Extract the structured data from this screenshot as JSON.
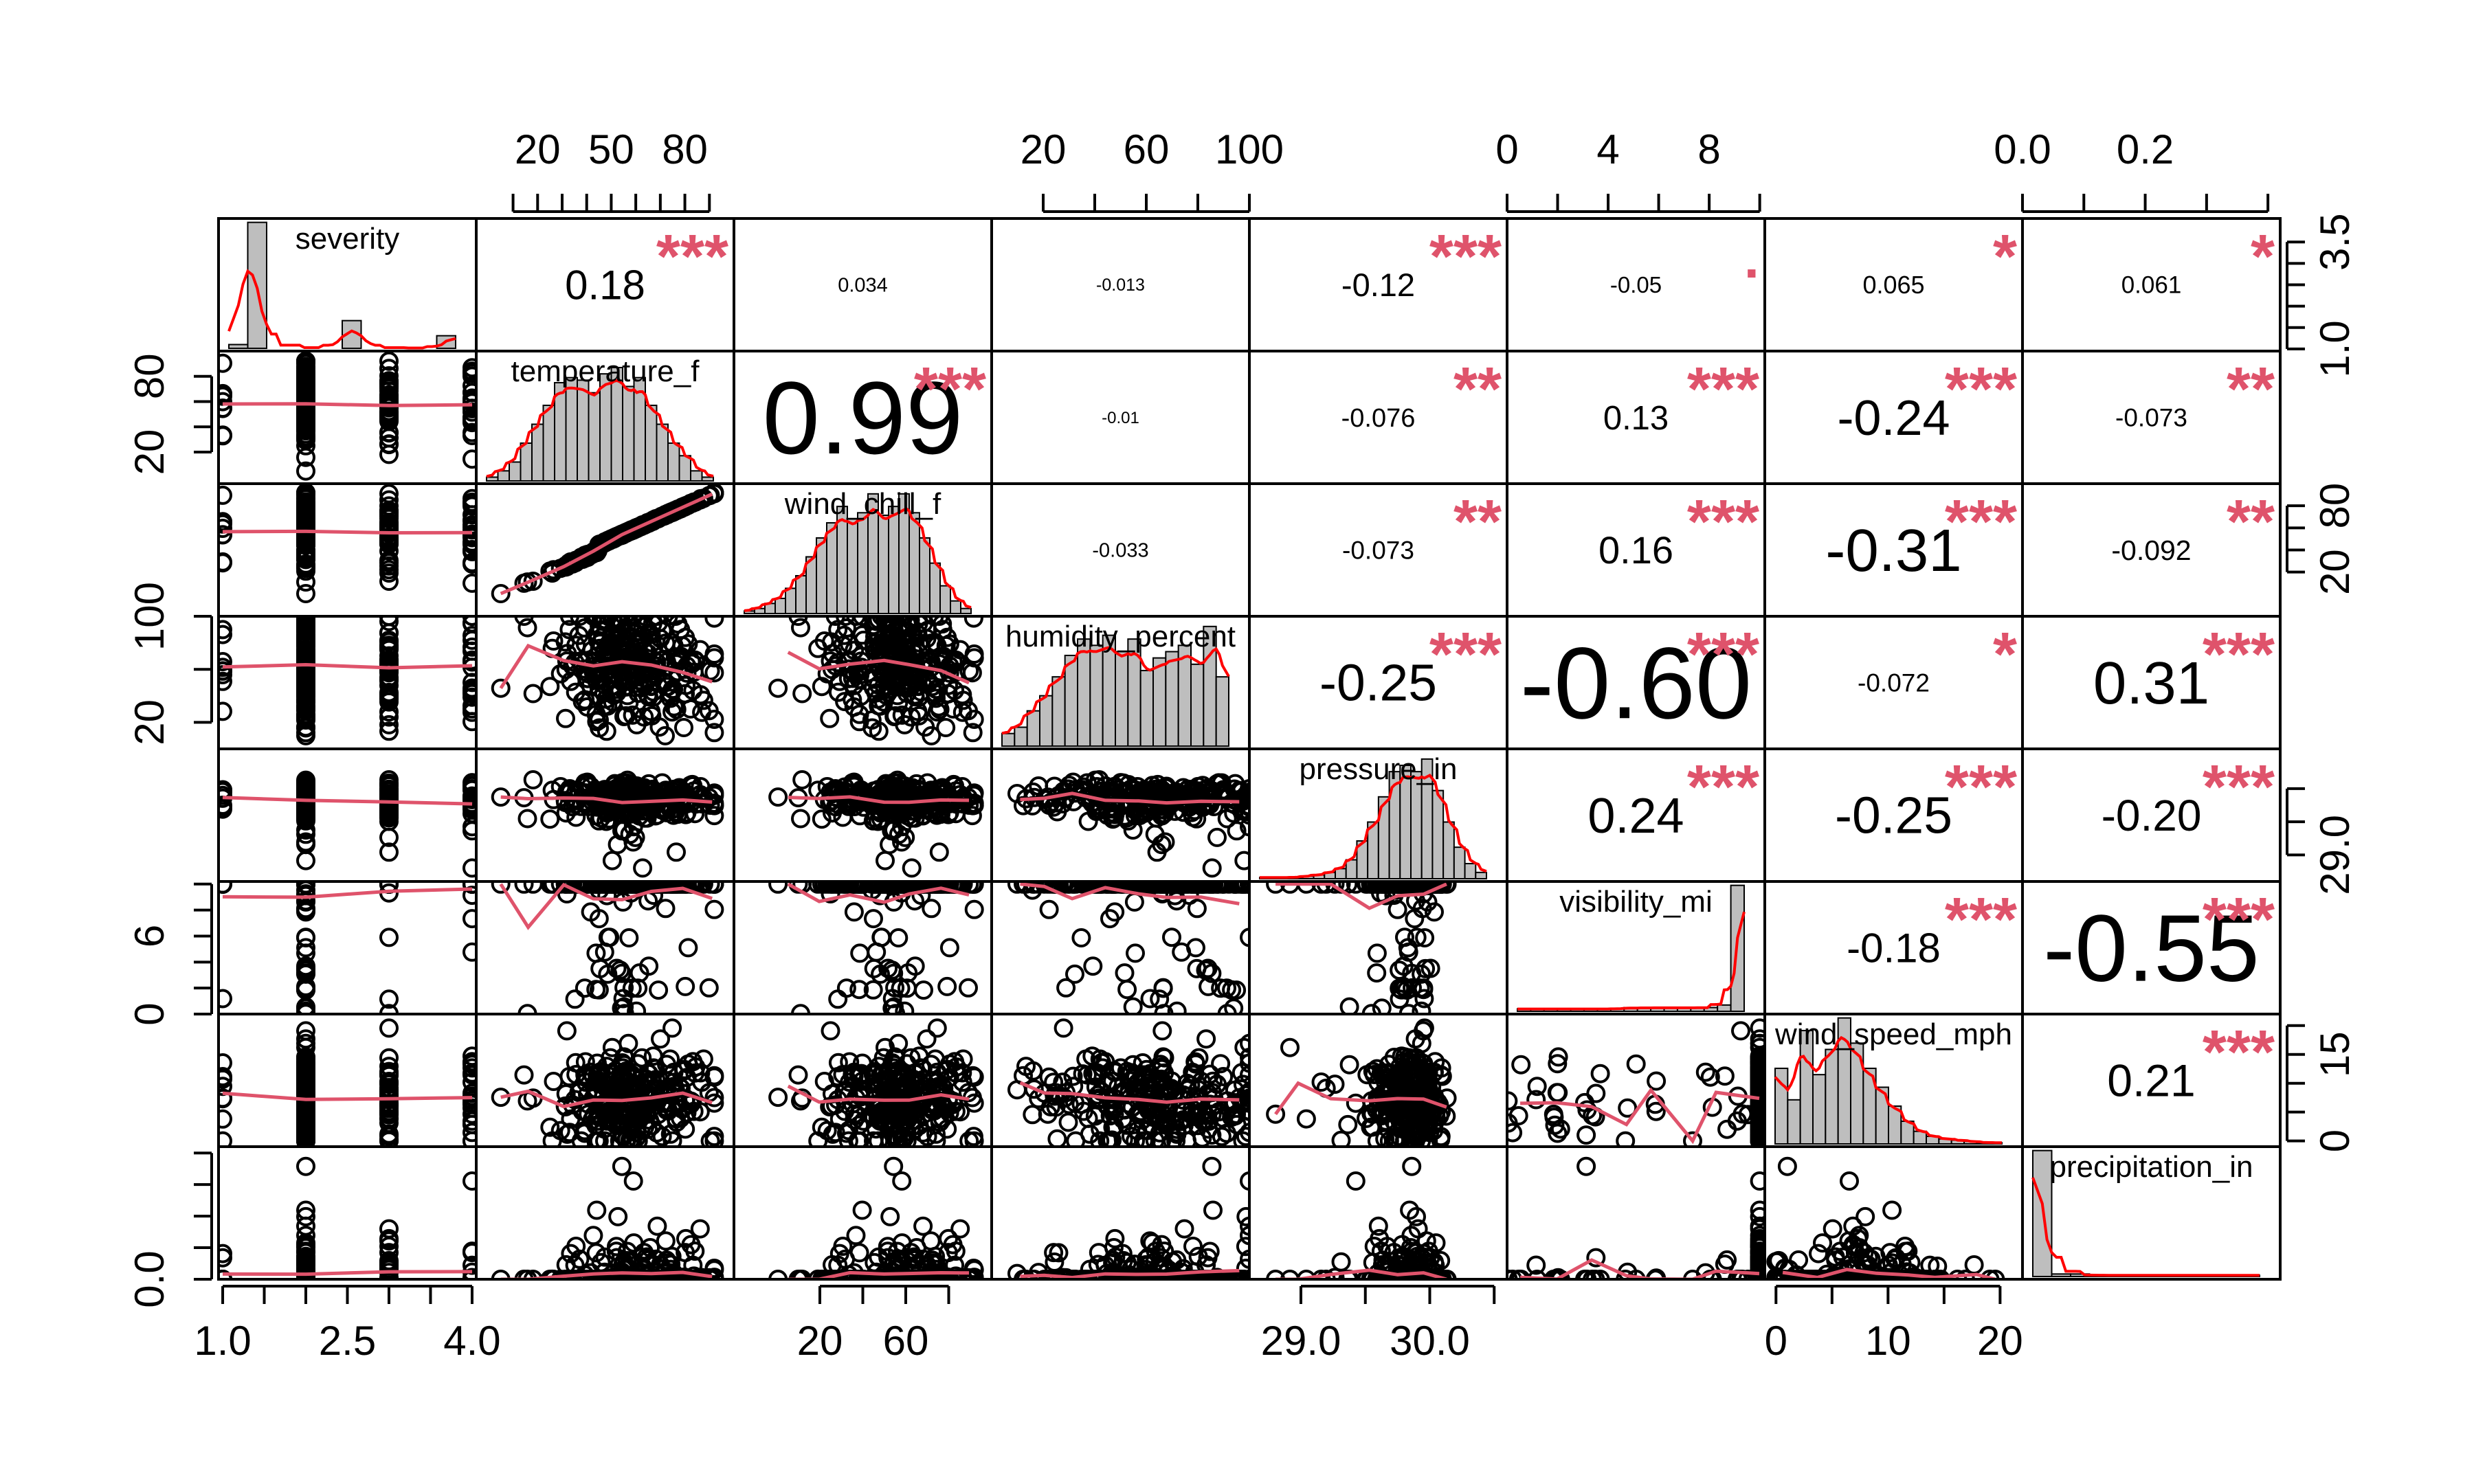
{
  "chart_data": {
    "type": "scatter-matrix",
    "title": "",
    "variables": [
      "severity",
      "temperature_f",
      "wind_chill_f",
      "humidity_percent",
      "pressure_in",
      "visibility_mi",
      "wind_speed_mph",
      "precipitation_in"
    ],
    "axis_ranges": [
      [
        0.95,
        4.05
      ],
      [
        -5,
        100
      ],
      [
        -20,
        100
      ],
      [
        0,
        100
      ],
      [
        28.6,
        30.6
      ],
      [
        0,
        10.2
      ],
      [
        -1,
        22
      ],
      [
        0,
        0.42
      ]
    ],
    "tick_labels": {
      "severity": [
        "1.0",
        "2.5",
        "4.0"
      ],
      "severity_right": [
        "1.0",
        "3.5"
      ],
      "temperature_f": [
        "20",
        "50",
        "80"
      ],
      "temperature_f_left": [
        "20",
        "80"
      ],
      "wind_chill_f": [
        "20",
        "60"
      ],
      "wind_chill_f_right": [
        "20",
        "80"
      ],
      "humidity_percent": [
        "20",
        "60",
        "100"
      ],
      "humidity_percent_left": [
        "20",
        "100"
      ],
      "pressure_in": [
        "29.0",
        "30.0"
      ],
      "pressure_in_right": [
        "29.0"
      ],
      "visibility_mi": [
        "0",
        "4",
        "8"
      ],
      "visibility_mi_left": [
        "0",
        "6"
      ],
      "wind_speed_mph": [
        "0",
        "10",
        "20"
      ],
      "wind_speed_mph_right": [
        "0",
        "15"
      ],
      "precipitation_in": [
        "0.0",
        "0.2"
      ],
      "precipitation_in_left": [
        "0.0"
      ]
    },
    "correlations": [
      {
        "row": 0,
        "col": 1,
        "value": "0.18",
        "stars": "***"
      },
      {
        "row": 0,
        "col": 2,
        "value": "0.034",
        "stars": ""
      },
      {
        "row": 0,
        "col": 3,
        "value": "-0.013",
        "stars": ""
      },
      {
        "row": 0,
        "col": 4,
        "value": "-0.12",
        "stars": "***"
      },
      {
        "row": 0,
        "col": 5,
        "value": "-0.05",
        "stars": "."
      },
      {
        "row": 0,
        "col": 6,
        "value": "0.065",
        "stars": "*"
      },
      {
        "row": 0,
        "col": 7,
        "value": "0.061",
        "stars": "*"
      },
      {
        "row": 1,
        "col": 2,
        "value": "0.99",
        "stars": "***"
      },
      {
        "row": 1,
        "col": 3,
        "value": "-0.01",
        "stars": ""
      },
      {
        "row": 1,
        "col": 4,
        "value": "-0.076",
        "stars": "**"
      },
      {
        "row": 1,
        "col": 5,
        "value": "0.13",
        "stars": "***"
      },
      {
        "row": 1,
        "col": 6,
        "value": "-0.24",
        "stars": "***"
      },
      {
        "row": 1,
        "col": 7,
        "value": "-0.073",
        "stars": "**"
      },
      {
        "row": 2,
        "col": 3,
        "value": "-0.033",
        "stars": ""
      },
      {
        "row": 2,
        "col": 4,
        "value": "-0.073",
        "stars": "**"
      },
      {
        "row": 2,
        "col": 5,
        "value": "0.16",
        "stars": "***"
      },
      {
        "row": 2,
        "col": 6,
        "value": "-0.31",
        "stars": "***"
      },
      {
        "row": 2,
        "col": 7,
        "value": "-0.092",
        "stars": "**"
      },
      {
        "row": 3,
        "col": 4,
        "value": "-0.25",
        "stars": "***"
      },
      {
        "row": 3,
        "col": 5,
        "value": "-0.60",
        "stars": "***"
      },
      {
        "row": 3,
        "col": 6,
        "value": "-0.072",
        "stars": "*"
      },
      {
        "row": 3,
        "col": 7,
        "value": "0.31",
        "stars": "***"
      },
      {
        "row": 4,
        "col": 5,
        "value": "0.24",
        "stars": "***"
      },
      {
        "row": 4,
        "col": 6,
        "value": "-0.25",
        "stars": "***"
      },
      {
        "row": 4,
        "col": 7,
        "value": "-0.20",
        "stars": "***"
      },
      {
        "row": 5,
        "col": 6,
        "value": "-0.18",
        "stars": "***"
      },
      {
        "row": 5,
        "col": 7,
        "value": "-0.55",
        "stars": "***"
      },
      {
        "row": 6,
        "col": 7,
        "value": "0.21",
        "stars": "***"
      }
    ],
    "histograms": [
      [
        0.03,
        1.0,
        0.0,
        0.0,
        0.0,
        0.0,
        0.22,
        0.0,
        0.0,
        0.0,
        0.0,
        0.1
      ],
      [
        0.03,
        0.08,
        0.15,
        0.3,
        0.45,
        0.6,
        0.78,
        0.82,
        0.8,
        0.7,
        0.85,
        0.9,
        0.75,
        0.82,
        0.6,
        0.45,
        0.3,
        0.2,
        0.08,
        0.03
      ],
      [
        0.02,
        0.04,
        0.08,
        0.12,
        0.2,
        0.3,
        0.45,
        0.6,
        0.72,
        0.85,
        0.75,
        0.8,
        0.95,
        0.78,
        0.85,
        0.95,
        0.8,
        0.6,
        0.4,
        0.22,
        0.1,
        0.04
      ],
      [
        0.1,
        0.15,
        0.28,
        0.4,
        0.55,
        0.72,
        0.85,
        0.8,
        0.88,
        0.75,
        0.85,
        0.6,
        0.7,
        0.75,
        0.8,
        0.65,
        0.95,
        0.55
      ],
      [
        0.01,
        0.01,
        0.01,
        0.01,
        0.02,
        0.03,
        0.05,
        0.08,
        0.15,
        0.3,
        0.45,
        0.65,
        0.85,
        0.9,
        0.85,
        0.95,
        0.7,
        0.45,
        0.25,
        0.12,
        0.05
      ],
      [
        0.02,
        0.02,
        0.02,
        0.02,
        0.02,
        0.02,
        0.02,
        0.02,
        0.03,
        0.03,
        0.03,
        0.03,
        0.03,
        0.03,
        0.03,
        0.05,
        1.0
      ],
      [
        0.6,
        0.35,
        0.9,
        0.55,
        0.75,
        1.0,
        0.8,
        0.6,
        0.45,
        0.3,
        0.18,
        0.1,
        0.06,
        0.04,
        0.03,
        0.02,
        0.01,
        0.01
      ],
      [
        1.0,
        0.02,
        0.02,
        0.01,
        0.01,
        0.01,
        0.01,
        0.01,
        0.01,
        0.01,
        0.01,
        0.01
      ]
    ],
    "grid": false,
    "legend": "none",
    "colors": {
      "points": "#000000",
      "smooth": "#DF536B",
      "density": "#FF0000",
      "stars": "#DF536B",
      "hist_fill": "#BEBEBE"
    }
  }
}
